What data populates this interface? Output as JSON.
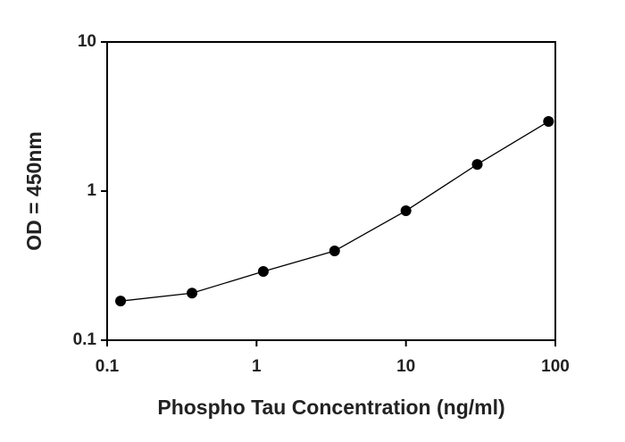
{
  "chart_data": {
    "type": "line",
    "x_label": "Phospho Tau Concentration (ng/ml)",
    "y_label": "OD = 450nm",
    "series": [
      {
        "x": [
          0.123,
          0.37,
          1.11,
          3.33,
          10,
          30,
          90
        ],
        "values": [
          0.183,
          0.207,
          0.289,
          0.397,
          0.738,
          1.51,
          2.93
        ],
        "color": "#000000"
      }
    ],
    "xlim": [
      0.1,
      100
    ],
    "xticks": [
      0.1,
      1,
      10,
      100
    ],
    "ylim": [
      0.1,
      10
    ],
    "yticks": [
      0.1,
      1,
      10
    ],
    "x_log": true,
    "y_log": true,
    "markers": true
  }
}
